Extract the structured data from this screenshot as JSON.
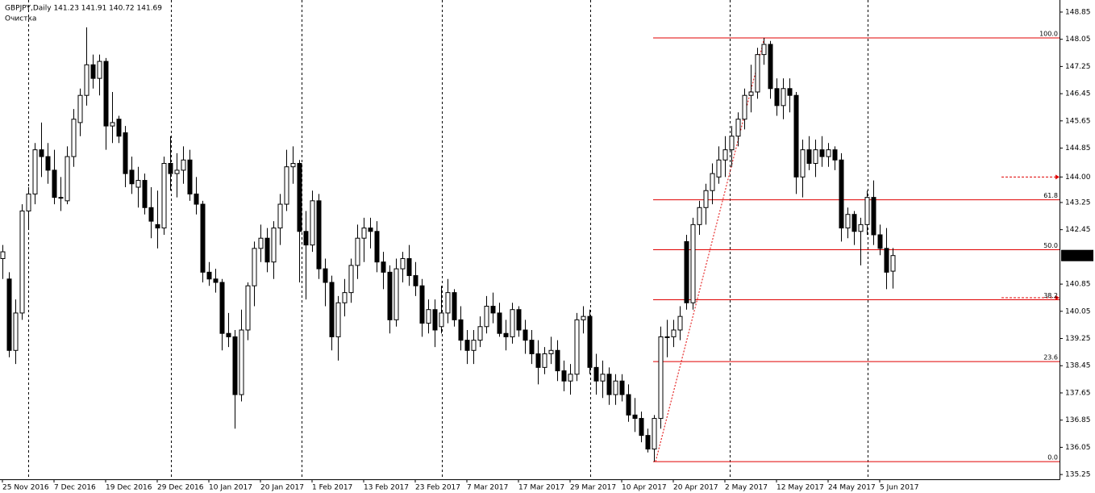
{
  "chart_data": {
    "type": "candlestick",
    "header": "GBPJPY,Daily  141.23 141.91 140.72 141.69",
    "subheader": "Очистка",
    "ylim": [
      135.11,
      149.11
    ],
    "yticks": [
      148.85,
      148.05,
      147.25,
      146.45,
      145.65,
      144.85,
      {
        "value": 144.0,
        "label": "144.00"
      },
      143.25,
      142.45,
      140.85,
      140.05,
      139.25,
      138.45,
      137.65,
      136.85,
      136.05,
      135.25
    ],
    "last_price": 141.69,
    "alerts": [
      144.0,
      140.45
    ],
    "fib": {
      "low": 135.63,
      "high": 148.09,
      "color": "#e00000",
      "levels": [
        {
          "value": 100,
          "label": "100.0"
        },
        {
          "value": 61.8,
          "label": "61.8"
        },
        {
          "value": 50,
          "label": "50.0"
        },
        {
          "value": 38.2,
          "label": "38.2"
        },
        {
          "value": 23.6,
          "label": "23.6"
        },
        {
          "value": 0,
          "label": "0.0"
        }
      ]
    },
    "categories": [
      "25 Nov 2016",
      null,
      null,
      null,
      null,
      null,
      null,
      null,
      "7 Dec 2016",
      null,
      null,
      null,
      null,
      null,
      null,
      null,
      "19 Dec 2016",
      null,
      null,
      null,
      null,
      null,
      null,
      null,
      "29 Dec 2016",
      null,
      null,
      null,
      null,
      null,
      null,
      null,
      "10 Jan 2017",
      null,
      null,
      null,
      null,
      null,
      null,
      null,
      "20 Jan 2017",
      null,
      null,
      null,
      null,
      null,
      null,
      null,
      "1 Feb 2017",
      null,
      null,
      null,
      null,
      null,
      null,
      null,
      "13 Feb 2017",
      null,
      null,
      null,
      null,
      null,
      null,
      null,
      "23 Feb 2017",
      null,
      null,
      null,
      null,
      null,
      null,
      null,
      "7 Mar 2017",
      null,
      null,
      null,
      null,
      null,
      null,
      null,
      "17 Mar 2017",
      null,
      null,
      null,
      null,
      null,
      null,
      null,
      "29 Mar 2017",
      null,
      null,
      null,
      null,
      null,
      null,
      null,
      "10 Apr 2017",
      null,
      null,
      null,
      null,
      null,
      null,
      null,
      "20 Apr 2017",
      null,
      null,
      null,
      null,
      null,
      null,
      null,
      "2 May 2017",
      null,
      null,
      null,
      null,
      null,
      null,
      null,
      "12 May 2017",
      null,
      null,
      null,
      null,
      null,
      null,
      null,
      "24 May 2017",
      null,
      null,
      null,
      null,
      null,
      null,
      null,
      "5 Jun 2017",
      null,
      null
    ],
    "candles": [
      [
        141.6,
        142.0,
        141.0,
        141.8
      ],
      [
        141.0,
        141.2,
        138.7,
        138.9
      ],
      [
        138.9,
        140.4,
        138.5,
        140.0
      ],
      [
        140.0,
        143.2,
        139.8,
        143.0
      ],
      [
        143.0,
        143.7,
        142.5,
        143.5
      ],
      [
        143.5,
        145.0,
        143.2,
        144.8
      ],
      [
        144.8,
        145.6,
        144.0,
        144.6
      ],
      [
        144.6,
        145.0,
        143.8,
        144.2
      ],
      [
        144.2,
        144.8,
        143.2,
        143.4
      ],
      [
        143.4,
        144.0,
        143.0,
        143.4
      ],
      [
        143.3,
        144.9,
        143.2,
        144.6
      ],
      [
        144.6,
        146.0,
        144.3,
        145.7
      ],
      [
        145.6,
        146.6,
        145.2,
        146.4
      ],
      [
        146.4,
        148.4,
        146.1,
        147.3
      ],
      [
        147.3,
        147.6,
        146.6,
        146.9
      ],
      [
        146.9,
        147.6,
        146.4,
        147.4
      ],
      [
        147.4,
        147.5,
        144.8,
        145.5
      ],
      [
        145.5,
        146.5,
        145.0,
        145.6
      ],
      [
        145.7,
        145.8,
        145.0,
        145.2
      ],
      [
        145.3,
        145.5,
        143.7,
        144.1
      ],
      [
        144.2,
        144.6,
        143.5,
        143.8
      ],
      [
        143.7,
        144.3,
        143.1,
        143.9
      ],
      [
        143.9,
        144.1,
        142.9,
        143.1
      ],
      [
        143.1,
        143.7,
        142.2,
        142.7
      ],
      [
        142.6,
        143.6,
        141.9,
        142.5
      ],
      [
        142.5,
        144.6,
        142.3,
        144.4
      ],
      [
        144.4,
        145.2,
        143.6,
        144.1
      ],
      [
        144.1,
        144.7,
        143.4,
        144.2
      ],
      [
        144.2,
        144.9,
        143.8,
        144.5
      ],
      [
        144.5,
        144.8,
        143.3,
        143.5
      ],
      [
        143.5,
        144.0,
        142.9,
        143.2
      ],
      [
        143.2,
        143.3,
        140.9,
        141.2
      ],
      [
        141.2,
        141.5,
        140.8,
        141.0
      ],
      [
        141.0,
        141.3,
        140.6,
        140.9
      ],
      [
        140.9,
        141.0,
        138.9,
        139.4
      ],
      [
        139.4,
        140.0,
        139.0,
        139.3
      ],
      [
        139.3,
        139.5,
        136.6,
        137.6
      ],
      [
        137.6,
        140.1,
        137.4,
        139.5
      ],
      [
        139.5,
        140.9,
        139.2,
        140.8
      ],
      [
        140.8,
        142.1,
        140.2,
        141.9
      ],
      [
        141.9,
        142.6,
        141.5,
        142.2
      ],
      [
        142.2,
        142.5,
        141.2,
        141.5
      ],
      [
        141.5,
        142.7,
        141.0,
        142.5
      ],
      [
        142.5,
        143.5,
        142.0,
        143.2
      ],
      [
        143.2,
        144.8,
        143.0,
        144.3
      ],
      [
        144.3,
        144.9,
        143.8,
        144.4
      ],
      [
        144.4,
        144.5,
        140.9,
        142.4
      ],
      [
        142.4,
        143.0,
        140.4,
        142.0
      ],
      [
        142.0,
        143.6,
        141.8,
        143.3
      ],
      [
        143.3,
        143.5,
        141.0,
        141.3
      ],
      [
        141.3,
        141.6,
        140.2,
        140.9
      ],
      [
        140.9,
        141.1,
        138.9,
        139.3
      ],
      [
        139.3,
        140.5,
        138.6,
        140.3
      ],
      [
        140.3,
        141.0,
        139.9,
        140.6
      ],
      [
        140.6,
        141.6,
        140.3,
        141.4
      ],
      [
        141.4,
        142.6,
        141.0,
        142.2
      ],
      [
        142.2,
        142.8,
        141.5,
        142.5
      ],
      [
        142.5,
        142.8,
        141.9,
        142.4
      ],
      [
        142.4,
        142.7,
        141.2,
        141.5
      ],
      [
        141.5,
        141.8,
        140.7,
        141.2
      ],
      [
        141.2,
        141.4,
        139.4,
        139.8
      ],
      [
        139.8,
        141.6,
        139.6,
        141.3
      ],
      [
        141.3,
        141.8,
        140.9,
        141.6
      ],
      [
        141.6,
        142.0,
        140.8,
        141.1
      ],
      [
        141.1,
        141.5,
        140.5,
        140.8
      ],
      [
        140.8,
        141.0,
        139.3,
        139.7
      ],
      [
        139.7,
        140.4,
        139.4,
        140.1
      ],
      [
        140.1,
        140.4,
        139.0,
        139.5
      ],
      [
        139.6,
        140.8,
        139.4,
        140.0
      ],
      [
        140.0,
        141.0,
        139.7,
        140.6
      ],
      [
        140.6,
        140.7,
        139.6,
        139.8
      ],
      [
        139.8,
        140.2,
        138.9,
        139.2
      ],
      [
        139.2,
        139.5,
        138.5,
        138.9
      ],
      [
        138.9,
        139.5,
        138.5,
        139.2
      ],
      [
        139.2,
        139.9,
        139.0,
        139.6
      ],
      [
        139.6,
        140.5,
        139.4,
        140.2
      ],
      [
        140.2,
        140.6,
        139.7,
        140.0
      ],
      [
        140.0,
        140.3,
        139.3,
        139.4
      ],
      [
        139.4,
        139.8,
        138.9,
        139.3
      ],
      [
        139.3,
        140.3,
        139.1,
        140.1
      ],
      [
        140.1,
        140.2,
        139.3,
        139.5
      ],
      [
        139.5,
        139.8,
        138.8,
        139.2
      ],
      [
        139.2,
        139.5,
        138.5,
        138.8
      ],
      [
        138.8,
        139.2,
        137.9,
        138.4
      ],
      [
        138.4,
        139.0,
        138.2,
        138.8
      ],
      [
        138.8,
        139.3,
        138.5,
        138.9
      ],
      [
        138.9,
        139.2,
        138.0,
        138.3
      ],
      [
        138.3,
        138.6,
        137.7,
        138.0
      ],
      [
        138.0,
        138.5,
        137.6,
        138.2
      ],
      [
        138.2,
        140.0,
        138.0,
        139.8
      ],
      [
        139.8,
        140.2,
        139.4,
        139.9
      ],
      [
        139.9,
        140.1,
        138.2,
        138.4
      ],
      [
        138.4,
        138.8,
        137.6,
        138.0
      ],
      [
        138.0,
        138.6,
        137.5,
        138.2
      ],
      [
        138.2,
        138.4,
        137.3,
        137.6
      ],
      [
        137.6,
        138.2,
        137.3,
        138.0
      ],
      [
        138.0,
        138.2,
        137.4,
        137.6
      ],
      [
        137.6,
        137.9,
        136.8,
        137.0
      ],
      [
        137.0,
        137.5,
        136.5,
        136.9
      ],
      [
        136.9,
        137.1,
        136.2,
        136.4
      ],
      [
        136.4,
        136.6,
        135.9,
        136.0
      ],
      [
        136.0,
        137.0,
        135.63,
        136.9
      ],
      [
        136.9,
        139.6,
        136.6,
        139.3
      ],
      [
        139.3,
        139.8,
        138.7,
        139.3
      ],
      [
        139.3,
        139.8,
        139.0,
        139.5
      ],
      [
        139.5,
        140.2,
        139.2,
        139.9
      ],
      [
        142.1,
        142.3,
        140.1,
        140.3
      ],
      [
        140.3,
        142.8,
        140.1,
        142.6
      ],
      [
        142.6,
        143.3,
        142.3,
        143.1
      ],
      [
        143.1,
        143.8,
        142.6,
        143.6
      ],
      [
        143.6,
        144.4,
        143.2,
        144.1
      ],
      [
        144.0,
        144.9,
        143.8,
        144.5
      ],
      [
        144.5,
        145.2,
        144.0,
        144.8
      ],
      [
        144.8,
        145.5,
        144.3,
        145.2
      ],
      [
        145.2,
        145.9,
        144.9,
        145.7
      ],
      [
        145.7,
        146.6,
        145.4,
        146.4
      ],
      [
        146.4,
        147.3,
        145.9,
        146.5
      ],
      [
        146.5,
        147.8,
        146.3,
        147.6
      ],
      [
        147.6,
        148.09,
        147.3,
        147.9
      ],
      [
        147.9,
        148.0,
        146.3,
        146.6
      ],
      [
        146.6,
        146.9,
        145.8,
        146.1
      ],
      [
        146.1,
        146.9,
        145.7,
        146.6
      ],
      [
        146.6,
        146.9,
        145.9,
        146.4
      ],
      [
        146.4,
        146.5,
        143.5,
        144.0
      ],
      [
        144.0,
        145.1,
        143.4,
        144.8
      ],
      [
        144.8,
        145.2,
        144.2,
        144.4
      ],
      [
        144.4,
        145.1,
        144.0,
        144.8
      ],
      [
        144.8,
        145.2,
        144.3,
        144.6
      ],
      [
        144.6,
        145.0,
        144.3,
        144.8
      ],
      [
        144.8,
        144.9,
        144.2,
        144.5
      ],
      [
        144.5,
        144.7,
        142.1,
        142.5
      ],
      [
        142.5,
        143.1,
        142.2,
        142.9
      ],
      [
        142.9,
        143.0,
        142.0,
        142.4
      ],
      [
        142.4,
        142.8,
        141.4,
        142.6
      ],
      [
        142.6,
        143.6,
        142.3,
        143.4
      ],
      [
        143.4,
        143.9,
        142.0,
        142.3
      ],
      [
        142.3,
        142.6,
        141.7,
        141.9
      ],
      [
        141.9,
        142.5,
        140.7,
        141.2
      ],
      [
        141.23,
        141.91,
        140.72,
        141.69
      ]
    ]
  }
}
